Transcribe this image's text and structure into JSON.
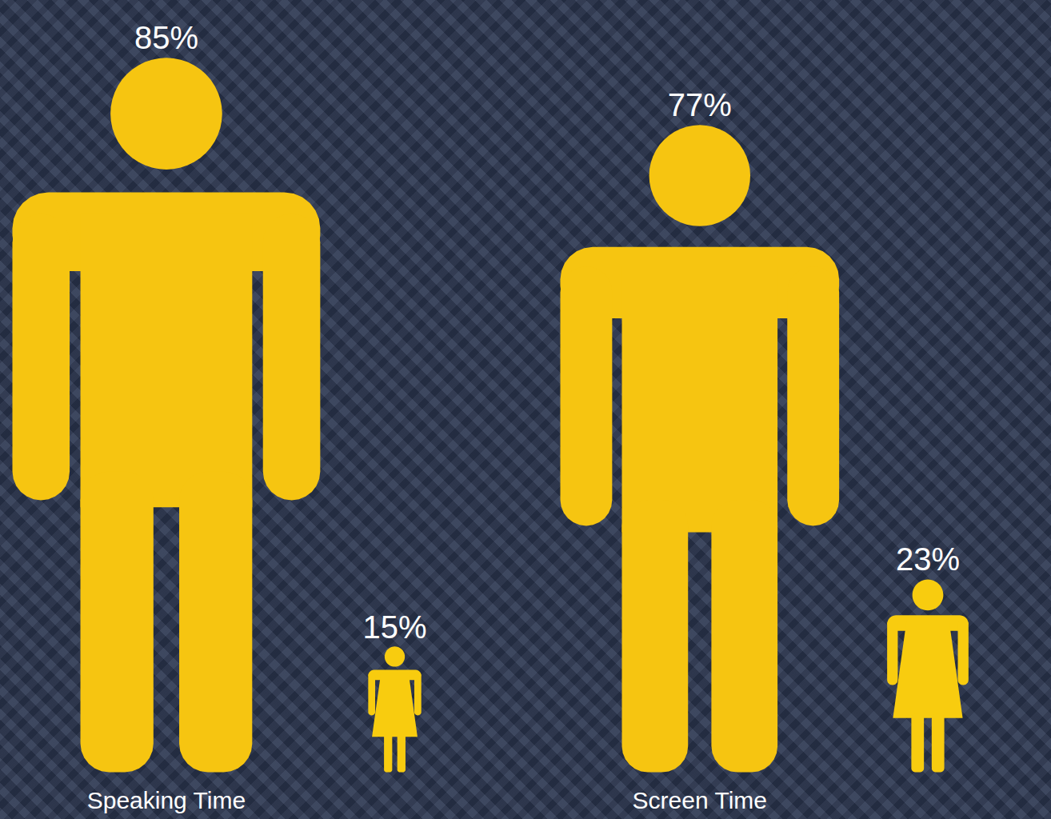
{
  "chart_data": {
    "type": "pictogram",
    "categories": [
      "Speaking Time",
      "Screen Time"
    ],
    "series": [
      {
        "marker": "man",
        "color": "#f6c511",
        "values": [
          85,
          77
        ],
        "value_labels": [
          "85%",
          "77%"
        ]
      },
      {
        "marker": "woman",
        "color": "#f8cc0f",
        "values": [
          15,
          23
        ],
        "value_labels": [
          "15%",
          "23%"
        ]
      }
    ],
    "data_labels": true
  }
}
